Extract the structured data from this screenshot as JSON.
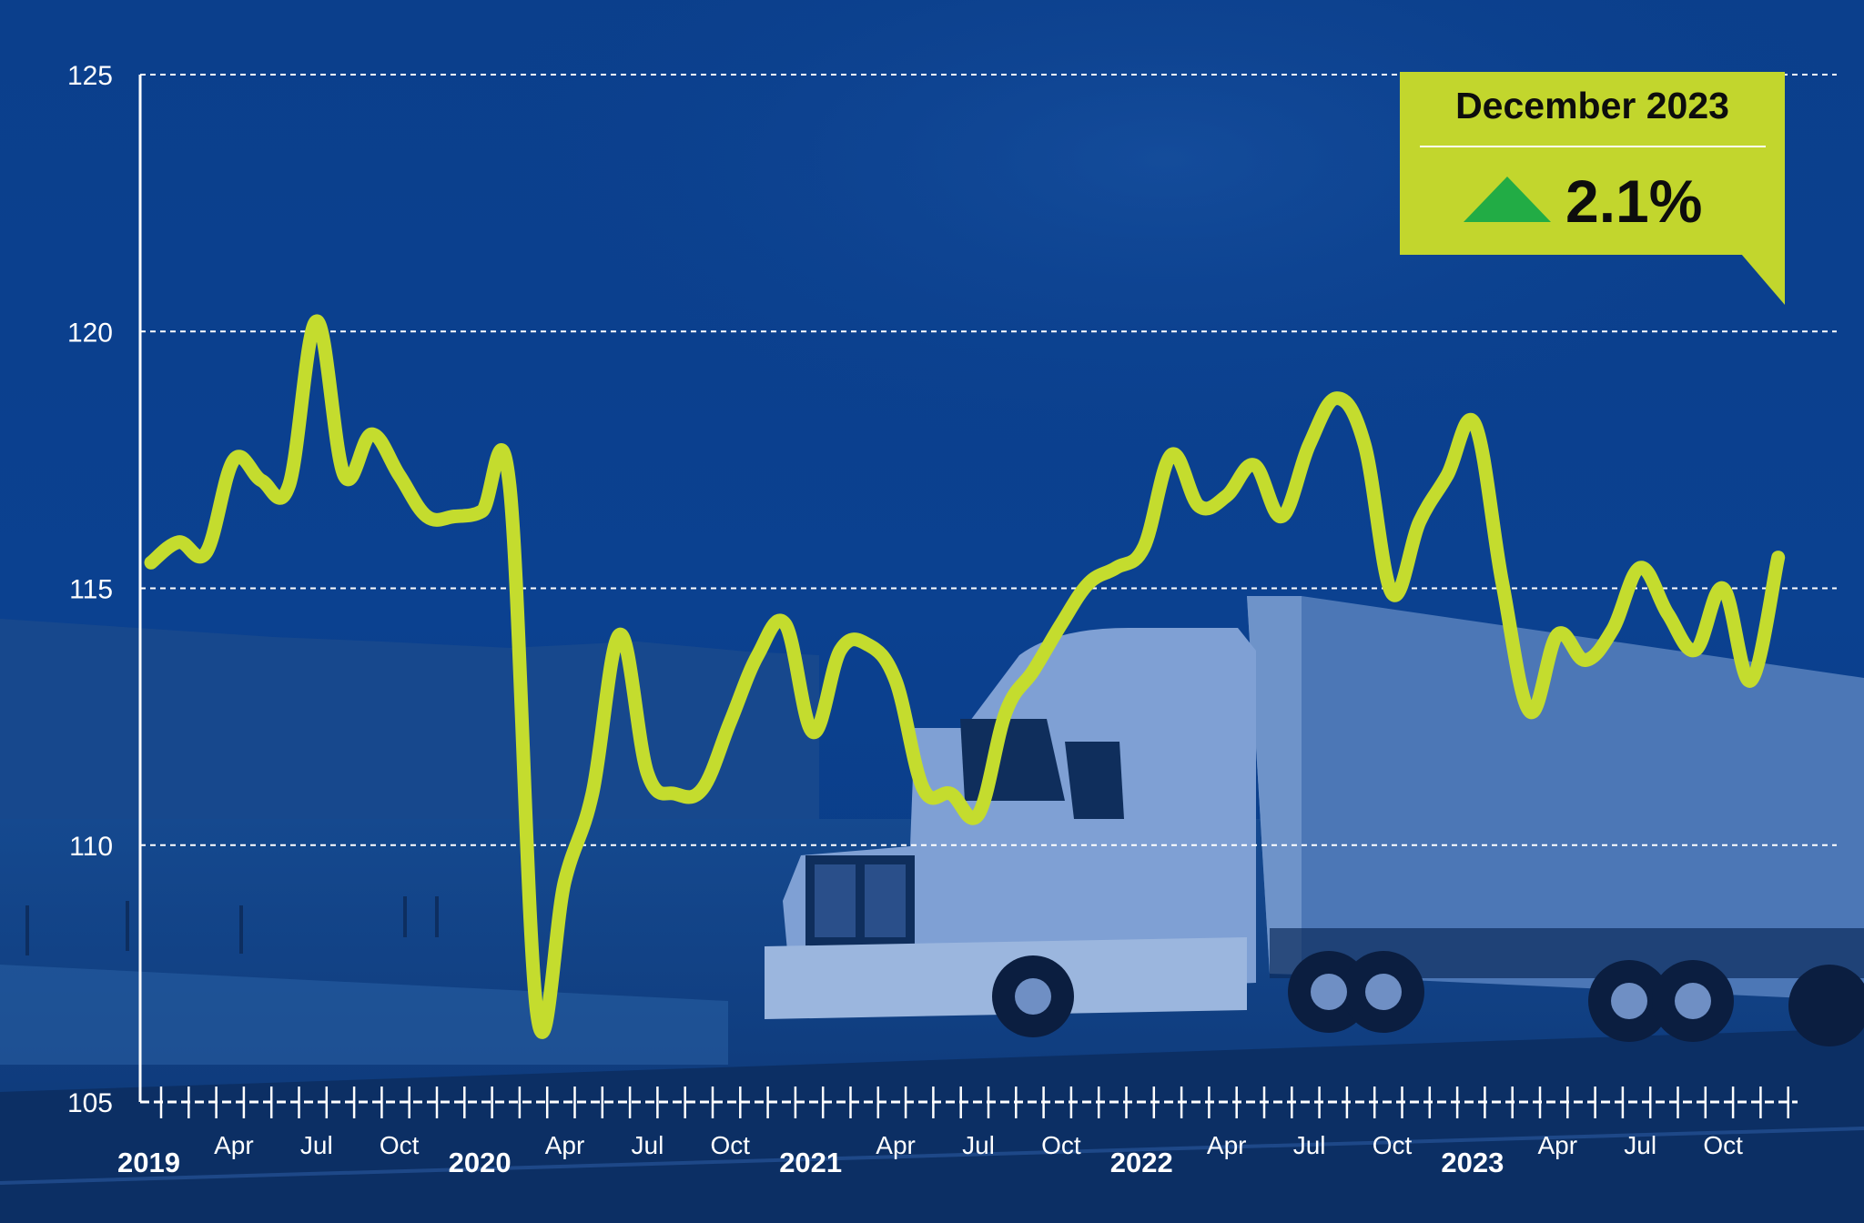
{
  "callout": {
    "title": "December 2023",
    "change": "2.1%",
    "direction": "up",
    "arrow_color": "#22ac45",
    "box_color": "#c2d62d"
  },
  "colors": {
    "background": "#0a3f8a",
    "line": "#c4dc2e",
    "grid": "#ffffff",
    "axis": "#ffffff"
  },
  "chart_data": {
    "type": "line",
    "title": "",
    "xlabel": "",
    "ylabel": "",
    "ylim": [
      105,
      125
    ],
    "yticks": [
      "105",
      "110",
      "115",
      "120",
      "125"
    ],
    "grid": "horizontal dashed",
    "legend": "none",
    "x_tick_labels": [
      {
        "label": "2019",
        "year": true,
        "index": 0
      },
      {
        "label": "Apr",
        "year": false,
        "index": 3
      },
      {
        "label": "Jul",
        "year": false,
        "index": 6
      },
      {
        "label": "Oct",
        "year": false,
        "index": 9
      },
      {
        "label": "2020",
        "year": true,
        "index": 12
      },
      {
        "label": "Apr",
        "year": false,
        "index": 15
      },
      {
        "label": "Jul",
        "year": false,
        "index": 18
      },
      {
        "label": "Oct",
        "year": false,
        "index": 21
      },
      {
        "label": "2021",
        "year": true,
        "index": 24
      },
      {
        "label": "Apr",
        "year": false,
        "index": 27
      },
      {
        "label": "Jul",
        "year": false,
        "index": 30
      },
      {
        "label": "Oct",
        "year": false,
        "index": 33
      },
      {
        "label": "2022",
        "year": true,
        "index": 36
      },
      {
        "label": "Apr",
        "year": false,
        "index": 39
      },
      {
        "label": "Jul",
        "year": false,
        "index": 42
      },
      {
        "label": "Oct",
        "year": false,
        "index": 45
      },
      {
        "label": "2023",
        "year": true,
        "index": 48
      },
      {
        "label": "Apr",
        "year": false,
        "index": 51
      },
      {
        "label": "Jul",
        "year": false,
        "index": 54
      },
      {
        "label": "Oct",
        "year": false,
        "index": 57
      }
    ],
    "series": [
      {
        "x": [
          "2019-01",
          "2019-02",
          "2019-03",
          "2019-04",
          "2019-05",
          "2019-06",
          "2019-07",
          "2019-08",
          "2019-09",
          "2019-10",
          "2019-11",
          "2019-12",
          "2020-01",
          "2020-02",
          "2020-03",
          "2020-04",
          "2020-05",
          "2020-06",
          "2020-07",
          "2020-08",
          "2020-09",
          "2020-10",
          "2020-11",
          "2020-12",
          "2021-01",
          "2021-02",
          "2021-03",
          "2021-04",
          "2021-05",
          "2021-06",
          "2021-07",
          "2021-08",
          "2021-09",
          "2021-10",
          "2021-11",
          "2021-12",
          "2022-01",
          "2022-02",
          "2022-03",
          "2022-04",
          "2022-05",
          "2022-06",
          "2022-07",
          "2022-08",
          "2022-09",
          "2022-10",
          "2022-11",
          "2022-12",
          "2023-01",
          "2023-02",
          "2023-03",
          "2023-04",
          "2023-05",
          "2023-06",
          "2023-07",
          "2023-08",
          "2023-09",
          "2023-10",
          "2023-11",
          "2023-12"
        ],
        "values": [
          115.5,
          115.9,
          115.7,
          117.5,
          117.1,
          117.0,
          120.2,
          117.2,
          118.0,
          117.2,
          116.4,
          116.4,
          116.5,
          117.0,
          106.7,
          109.3,
          111.0,
          114.1,
          111.4,
          111.0,
          111.1,
          112.4,
          113.7,
          114.3,
          112.2,
          113.8,
          113.9,
          113.2,
          111.1,
          111.0,
          110.6,
          112.6,
          113.4,
          114.3,
          115.1,
          115.4,
          115.8,
          117.6,
          116.6,
          116.8,
          117.4,
          116.4,
          117.8,
          118.7,
          117.8,
          114.9,
          116.3,
          117.2,
          118.2,
          115.1,
          112.6,
          114.1,
          113.6,
          114.2,
          115.4,
          114.5,
          113.8,
          115.0,
          113.2,
          115.6
        ]
      }
    ]
  }
}
